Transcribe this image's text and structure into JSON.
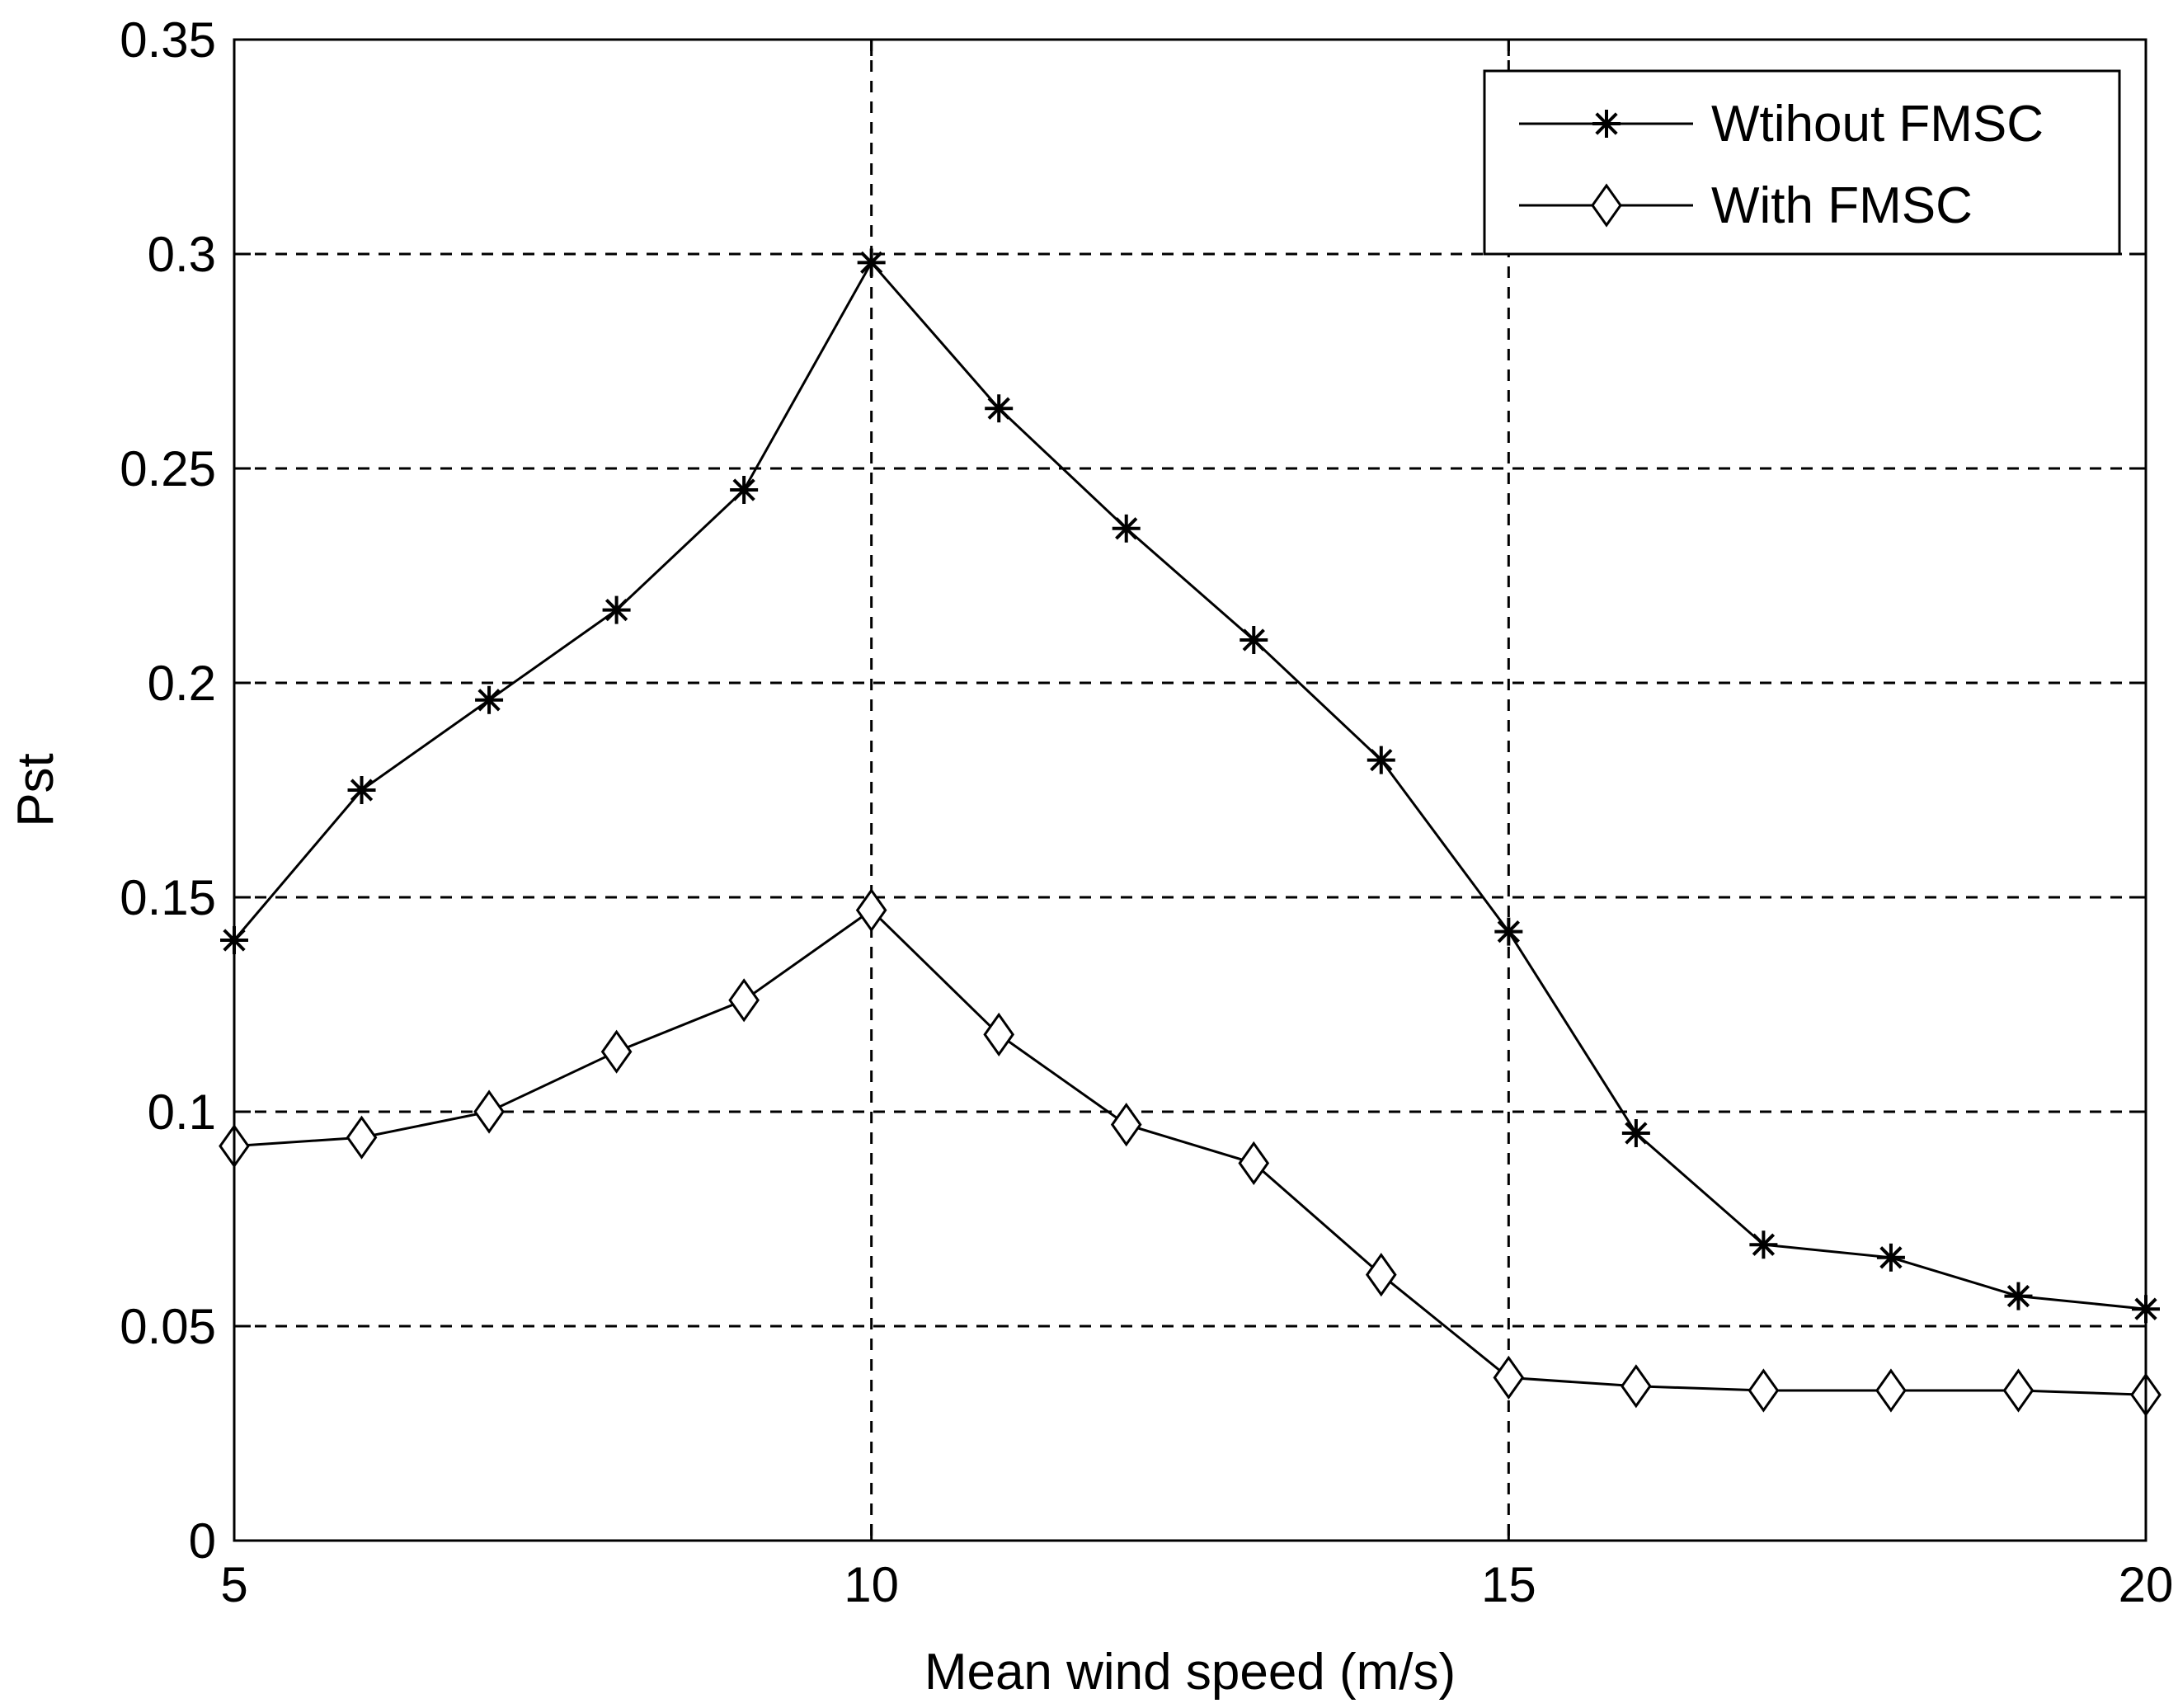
{
  "chart_data": {
    "type": "line",
    "title": "",
    "xlabel": "Mean wind speed (m/s)",
    "ylabel": "Pst",
    "xlim": [
      5,
      20
    ],
    "ylim": [
      0,
      0.35
    ],
    "xticks": [
      5,
      10,
      15,
      20
    ],
    "xtick_labels": [
      "5",
      "10",
      "15",
      "20"
    ],
    "yticks": [
      0,
      0.05,
      0.1,
      0.15,
      0.2,
      0.25,
      0.3,
      0.35
    ],
    "ytick_labels": [
      "0",
      "0.05",
      "0.1",
      "0.15",
      "0.2",
      "0.25",
      "0.3",
      "0.35"
    ],
    "grid": true,
    "legend_position": "top-right",
    "x": [
      5,
      6,
      7,
      8,
      9,
      10,
      11,
      12,
      13,
      14,
      15,
      16,
      17,
      18,
      19,
      20
    ],
    "series": [
      {
        "name": "Wtihout FMSC",
        "marker": "asterisk",
        "color": "#000000",
        "values": [
          0.14,
          0.175,
          0.196,
          0.217,
          0.245,
          0.298,
          0.264,
          0.236,
          0.21,
          0.182,
          0.142,
          0.095,
          0.069,
          0.066,
          0.057,
          0.054
        ]
      },
      {
        "name": "With FMSC",
        "marker": "diamond",
        "color": "#000000",
        "values": [
          0.092,
          0.094,
          0.1,
          0.114,
          0.126,
          0.147,
          0.118,
          0.097,
          0.088,
          0.062,
          0.038,
          0.036,
          0.035,
          0.035,
          0.035,
          0.034
        ]
      }
    ]
  }
}
